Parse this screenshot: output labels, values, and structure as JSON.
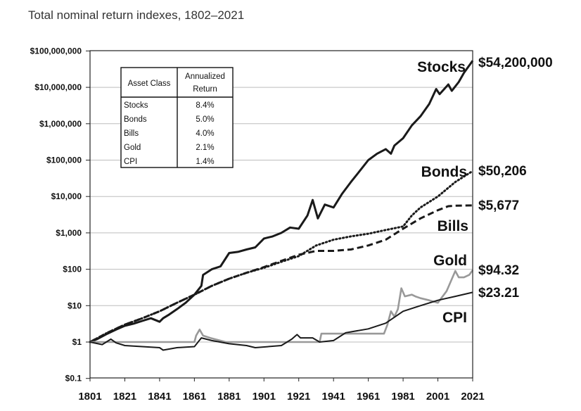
{
  "chart_data": {
    "type": "line",
    "title": "Total nominal return indexes, 1802–2021",
    "y_scale": "log",
    "ylim": [
      0.1,
      100000000
    ],
    "xlim": [
      1801,
      2021
    ],
    "grid": "horizontal",
    "y_ticks": [
      {
        "value": 100000000,
        "label": "$100,000,000"
      },
      {
        "value": 10000000,
        "label": "$10,000,000"
      },
      {
        "value": 1000000,
        "label": "$1,000,000"
      },
      {
        "value": 100000,
        "label": "$100,000"
      },
      {
        "value": 10000,
        "label": "$10,000"
      },
      {
        "value": 1000,
        "label": "$1,000"
      },
      {
        "value": 100,
        "label": "$100"
      },
      {
        "value": 10,
        "label": "$10"
      },
      {
        "value": 1,
        "label": "$1"
      },
      {
        "value": 0.1,
        "label": "$0.1"
      }
    ],
    "x_ticks": [
      {
        "value": 1801,
        "label": "1801"
      },
      {
        "value": 1821,
        "label": "1821"
      },
      {
        "value": 1841,
        "label": "1841"
      },
      {
        "value": 1861,
        "label": "1861"
      },
      {
        "value": 1881,
        "label": "1881"
      },
      {
        "value": 1901,
        "label": "1901"
      },
      {
        "value": 1921,
        "label": "1921"
      },
      {
        "value": 1941,
        "label": "1941"
      },
      {
        "value": 1961,
        "label": "1961"
      },
      {
        "value": 1981,
        "label": "1981"
      },
      {
        "value": 2001,
        "label": "2001"
      },
      {
        "value": 2021,
        "label": "2021"
      }
    ],
    "table": {
      "headers": [
        "Asset Class",
        "Annualized Return"
      ],
      "rows": [
        [
          "Stocks",
          "8.4%"
        ],
        [
          "Bonds",
          "5.0%"
        ],
        [
          "Bills",
          "4.0%"
        ],
        [
          "Gold",
          "2.1%"
        ],
        [
          "CPI",
          "1.4%"
        ]
      ]
    },
    "series": [
      {
        "name": "Stocks",
        "end_label": "$54,200,000",
        "color": "#1a1a1a",
        "style": "solid",
        "points": [
          [
            1801,
            1
          ],
          [
            1805,
            1.2
          ],
          [
            1811,
            1.7
          ],
          [
            1816,
            2.2
          ],
          [
            1821,
            2.8
          ],
          [
            1826,
            3.2
          ],
          [
            1831,
            3.8
          ],
          [
            1836,
            4.5
          ],
          [
            1841,
            3.6
          ],
          [
            1843,
            4.5
          ],
          [
            1846,
            5.5
          ],
          [
            1851,
            8
          ],
          [
            1856,
            12
          ],
          [
            1861,
            20
          ],
          [
            1865,
            35
          ],
          [
            1866,
            70
          ],
          [
            1871,
            100
          ],
          [
            1876,
            120
          ],
          [
            1881,
            280
          ],
          [
            1886,
            300
          ],
          [
            1891,
            350
          ],
          [
            1896,
            400
          ],
          [
            1901,
            700
          ],
          [
            1906,
            800
          ],
          [
            1911,
            1000
          ],
          [
            1916,
            1400
          ],
          [
            1921,
            1300
          ],
          [
            1926,
            3000
          ],
          [
            1929,
            8000
          ],
          [
            1932,
            2500
          ],
          [
            1936,
            6000
          ],
          [
            1941,
            5000
          ],
          [
            1946,
            12000
          ],
          [
            1951,
            25000
          ],
          [
            1956,
            50000
          ],
          [
            1961,
            100000
          ],
          [
            1966,
            150000
          ],
          [
            1971,
            200000
          ],
          [
            1974,
            150000
          ],
          [
            1976,
            250000
          ],
          [
            1981,
            400000
          ],
          [
            1986,
            900000
          ],
          [
            1991,
            1600000
          ],
          [
            1996,
            3500000
          ],
          [
            2000,
            9000000
          ],
          [
            2002,
            6500000
          ],
          [
            2007,
            12000000
          ],
          [
            2009,
            8000000
          ],
          [
            2013,
            14000000
          ],
          [
            2016,
            25000000
          ],
          [
            2021,
            54200000
          ]
        ]
      },
      {
        "name": "Bonds",
        "end_label": "$50,206",
        "color": "#1a1a1a",
        "style": "dotted",
        "points": [
          [
            1801,
            1
          ],
          [
            1811,
            1.8
          ],
          [
            1821,
            3
          ],
          [
            1831,
            4.5
          ],
          [
            1841,
            7
          ],
          [
            1851,
            12
          ],
          [
            1861,
            20
          ],
          [
            1871,
            35
          ],
          [
            1881,
            55
          ],
          [
            1891,
            80
          ],
          [
            1901,
            110
          ],
          [
            1911,
            160
          ],
          [
            1921,
            230
          ],
          [
            1931,
            450
          ],
          [
            1941,
            650
          ],
          [
            1951,
            800
          ],
          [
            1961,
            950
          ],
          [
            1971,
            1200
          ],
          [
            1981,
            1500
          ],
          [
            1986,
            3000
          ],
          [
            1991,
            5000
          ],
          [
            2001,
            10000
          ],
          [
            2011,
            25000
          ],
          [
            2021,
            50206
          ]
        ]
      },
      {
        "name": "Bills",
        "end_label": "$5,677",
        "color": "#1a1a1a",
        "style": "dashed",
        "points": [
          [
            1801,
            1
          ],
          [
            1811,
            1.8
          ],
          [
            1821,
            3
          ],
          [
            1831,
            4.5
          ],
          [
            1841,
            7
          ],
          [
            1851,
            12
          ],
          [
            1861,
            20
          ],
          [
            1871,
            35
          ],
          [
            1881,
            55
          ],
          [
            1891,
            80
          ],
          [
            1901,
            115
          ],
          [
            1911,
            170
          ],
          [
            1921,
            250
          ],
          [
            1931,
            320
          ],
          [
            1941,
            320
          ],
          [
            1951,
            350
          ],
          [
            1961,
            450
          ],
          [
            1971,
            650
          ],
          [
            1981,
            1300
          ],
          [
            1991,
            2500
          ],
          [
            2001,
            4200
          ],
          [
            2007,
            5400
          ],
          [
            2011,
            5600
          ],
          [
            2021,
            5677
          ]
        ]
      },
      {
        "name": "Gold",
        "end_label": "$94.32",
        "color": "#999999",
        "style": "solid",
        "points": [
          [
            1801,
            1
          ],
          [
            1861,
            1
          ],
          [
            1862,
            1.5
          ],
          [
            1864,
            2.2
          ],
          [
            1866,
            1.5
          ],
          [
            1870,
            1.3
          ],
          [
            1879,
            1
          ],
          [
            1933,
            1
          ],
          [
            1934,
            1.7
          ],
          [
            1970,
            1.7
          ],
          [
            1972,
            3
          ],
          [
            1974,
            7
          ],
          [
            1976,
            5
          ],
          [
            1978,
            8
          ],
          [
            1980,
            30
          ],
          [
            1982,
            18
          ],
          [
            1986,
            20
          ],
          [
            1988,
            18
          ],
          [
            1991,
            16
          ],
          [
            1996,
            14
          ],
          [
            2001,
            12
          ],
          [
            2006,
            25
          ],
          [
            2011,
            90
          ],
          [
            2013,
            60
          ],
          [
            2016,
            60
          ],
          [
            2019,
            70
          ],
          [
            2021,
            94.32
          ]
        ]
      },
      {
        "name": "CPI",
        "end_label": "$23.21",
        "color": "#1a1a1a",
        "style": "solid",
        "points": [
          [
            1801,
            1
          ],
          [
            1808,
            0.85
          ],
          [
            1813,
            1.2
          ],
          [
            1816,
            0.95
          ],
          [
            1821,
            0.8
          ],
          [
            1831,
            0.75
          ],
          [
            1841,
            0.7
          ],
          [
            1843,
            0.6
          ],
          [
            1851,
            0.7
          ],
          [
            1861,
            0.75
          ],
          [
            1865,
            1.3
          ],
          [
            1871,
            1.1
          ],
          [
            1881,
            0.9
          ],
          [
            1891,
            0.8
          ],
          [
            1896,
            0.7
          ],
          [
            1911,
            0.8
          ],
          [
            1917,
            1.2
          ],
          [
            1920,
            1.6
          ],
          [
            1922,
            1.3
          ],
          [
            1929,
            1.3
          ],
          [
            1933,
            1
          ],
          [
            1941,
            1.1
          ],
          [
            1948,
            1.8
          ],
          [
            1961,
            2.3
          ],
          [
            1971,
            3.3
          ],
          [
            1981,
            7
          ],
          [
            1991,
            10
          ],
          [
            2001,
            14
          ],
          [
            2011,
            18
          ],
          [
            2021,
            23.21
          ]
        ]
      }
    ]
  }
}
